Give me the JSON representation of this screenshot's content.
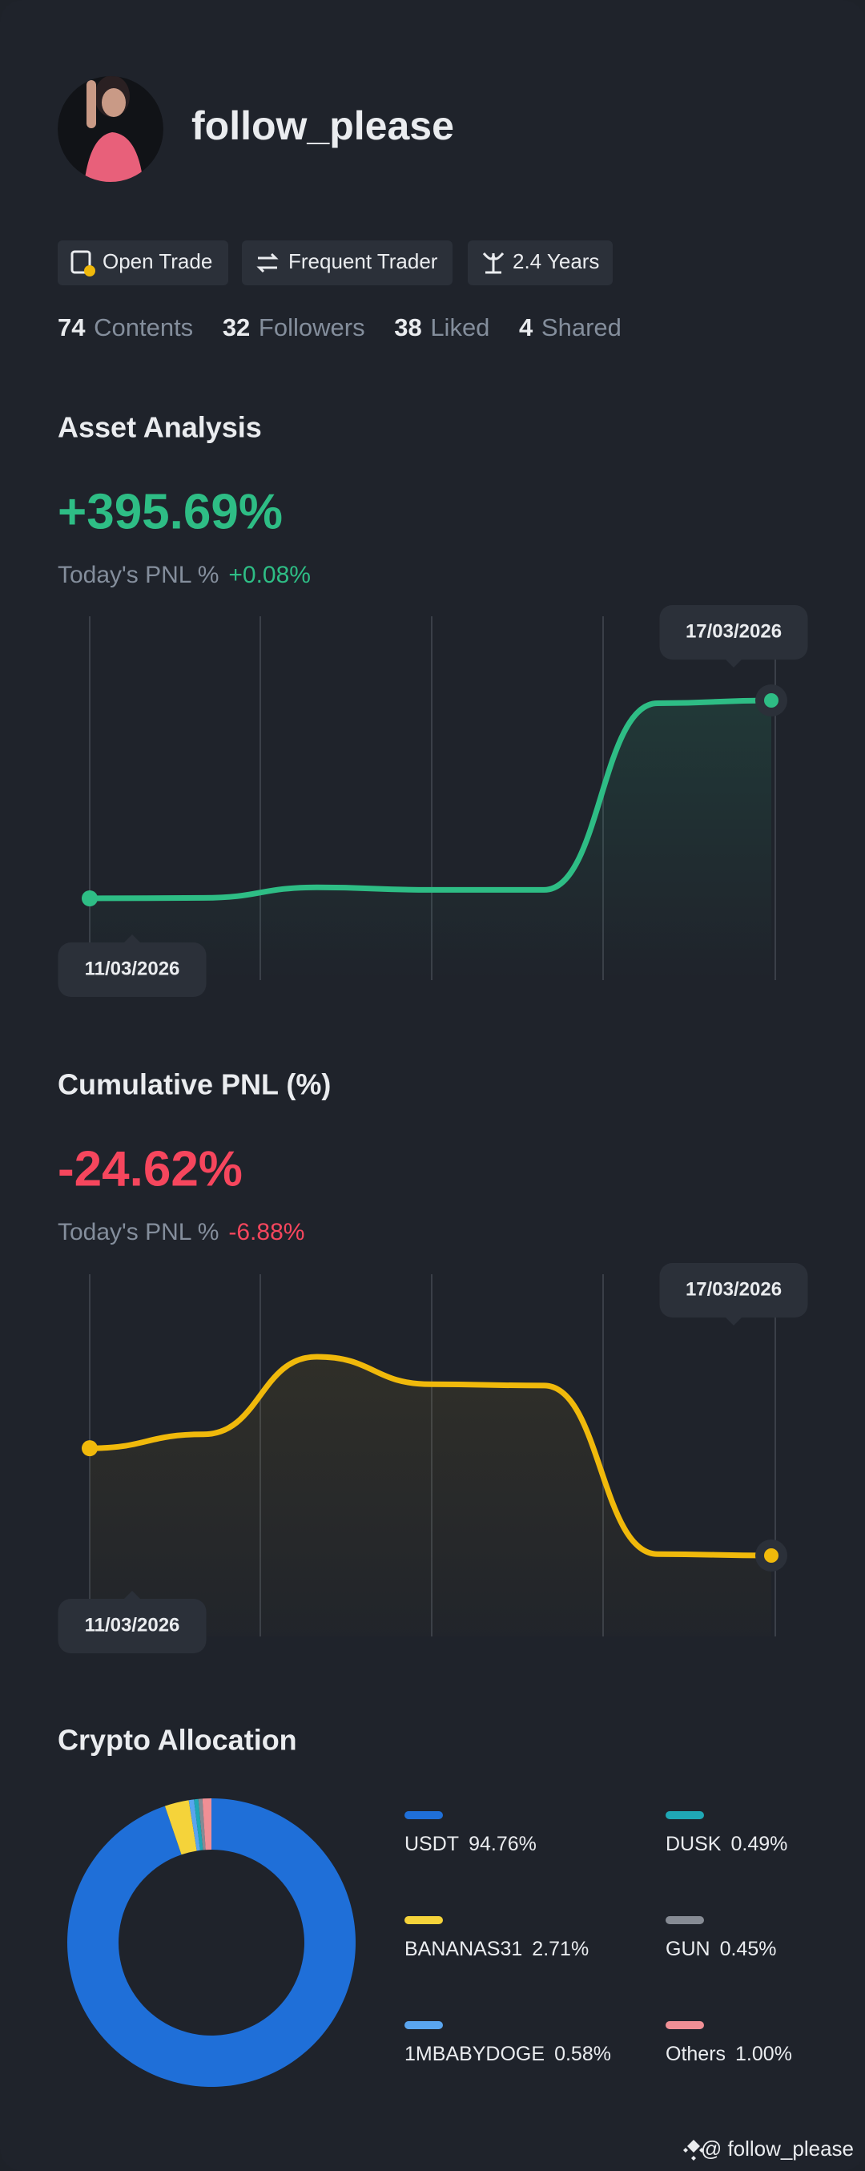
{
  "profile": {
    "name": "follow_please",
    "tags": [
      "Open Trade",
      "Frequent Trader",
      "2.4 Years"
    ],
    "stats": [
      {
        "value": 74,
        "label": "Contents"
      },
      {
        "value": 32,
        "label": "Followers"
      },
      {
        "value": 38,
        "label": "Liked"
      },
      {
        "value": 4,
        "label": "Shared"
      }
    ]
  },
  "chart_data": [
    {
      "type": "line",
      "title": "Asset Analysis",
      "value_label": "+395.69%",
      "value_color": "#2ebd85",
      "today_label": "Today's PNL %",
      "today_value": "+0.08%",
      "categories": [
        "11/03/2026",
        null,
        null,
        null,
        null,
        null,
        "17/03/2026"
      ],
      "series": [
        {
          "color": "#2ebd85",
          "values": [
            0,
            1,
            22,
            17,
            17,
            390,
            395.69
          ]
        }
      ]
    },
    {
      "type": "line",
      "title": "Cumulative PNL (%)",
      "value_label": "-24.62%",
      "value_color": "#f6465d",
      "today_label": "Today's PNL %",
      "today_value": "-6.88%",
      "categories": [
        "11/03/2026",
        null,
        null,
        null,
        null,
        null,
        "17/03/2026"
      ],
      "series": [
        {
          "color": "#f0b90b",
          "values": [
            0,
            3.2,
            21,
            14.7,
            14.4,
            -24.3,
            -24.62
          ]
        }
      ]
    },
    {
      "type": "pie",
      "title": "Crypto Allocation",
      "categories": [
        "USDT",
        "BANANAS31",
        "1MBABYDOGE",
        "DUSK",
        "GUN",
        "Others"
      ],
      "values": [
        94.76,
        2.71,
        0.58,
        0.49,
        0.45,
        1.0
      ],
      "value_labels": [
        "94.76%",
        "2.71%",
        "0.58%",
        "0.49%",
        "0.45%",
        "1.00%"
      ],
      "colors": [
        "#1f6fd8",
        "#f5d33a",
        "#5aa5ef",
        "#1fa7b5",
        "#868b94",
        "#f08f95"
      ]
    }
  ],
  "footer": "@ follow_please"
}
